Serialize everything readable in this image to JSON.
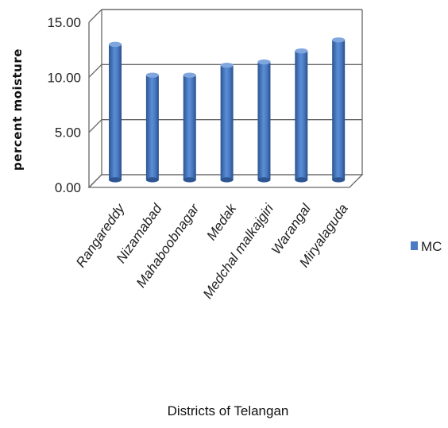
{
  "chart_data": {
    "type": "bar",
    "categories": [
      "Rangareddy",
      "Nizamabad",
      "Mahaboobnagar",
      "Medak",
      "Medchal malkajgiri",
      "Warangal",
      "Miryalaguda"
    ],
    "series": [
      {
        "name": "MC",
        "values": [
          12.3,
          9.5,
          9.5,
          10.4,
          10.7,
          11.7,
          12.7
        ]
      }
    ],
    "ylabel": "percent moisture",
    "xlabel": "Districts of Telangan",
    "ylim": [
      0,
      15
    ],
    "yticks": [
      "0.00",
      "5.00",
      "10.00",
      "15.00"
    ],
    "grid": true,
    "legend": "right",
    "colors": {
      "bar": "#4a7bc4",
      "bar_dark": "#2c5592",
      "bar_light": "#7fa6de"
    }
  }
}
